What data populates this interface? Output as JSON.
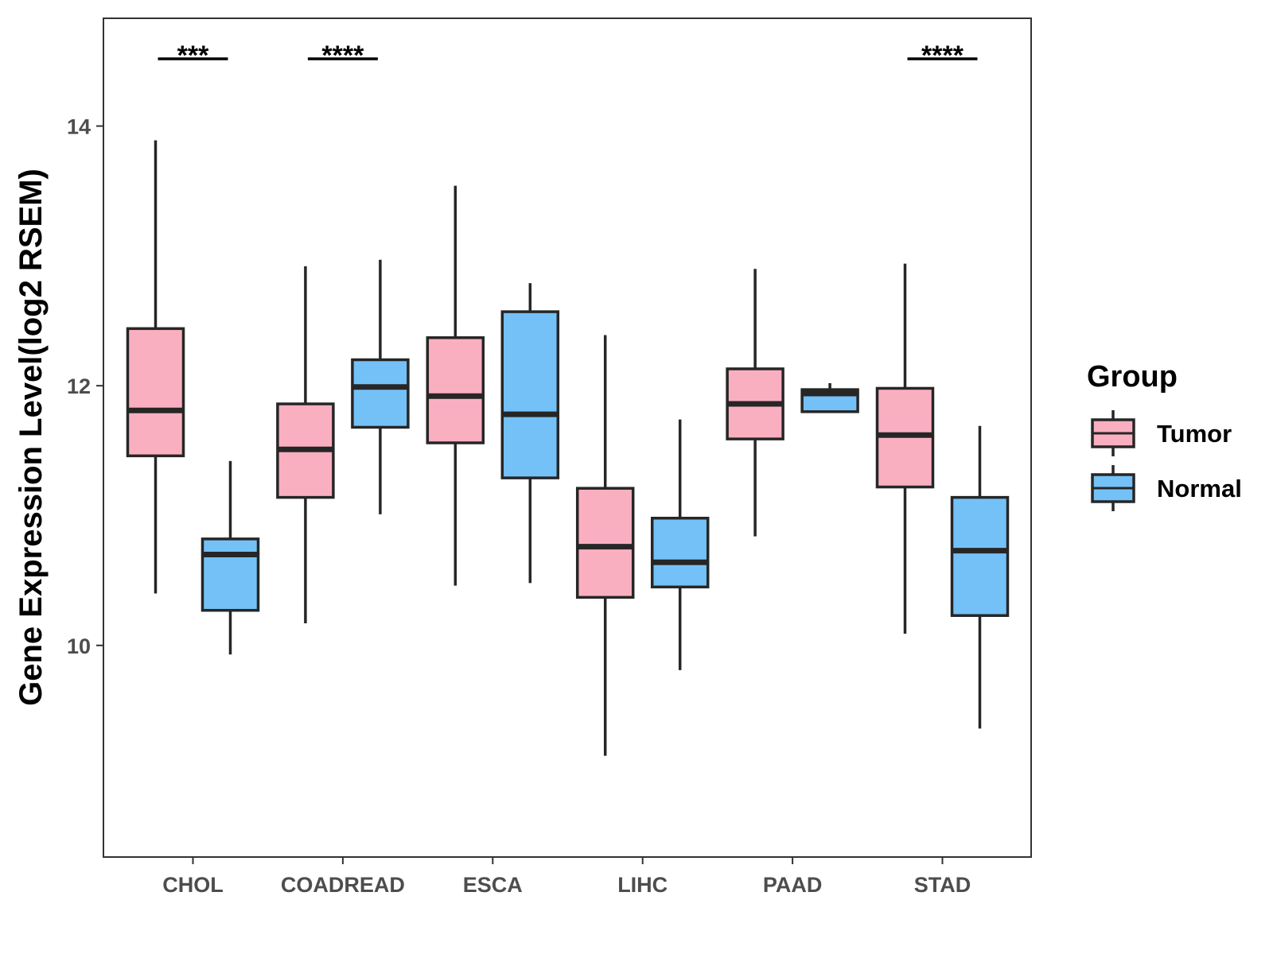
{
  "chart_data": {
    "type": "boxplot",
    "ylabel": "Gene Expression Level(log2 RSEM)",
    "xlabel": "",
    "ylim": [
      8.37,
      14.83
    ],
    "yticks": [
      10,
      12,
      14
    ],
    "grid": false,
    "legend": {
      "title": "Group",
      "position": "right",
      "entries": [
        {
          "name": "Tumor",
          "color": "#FAAFC1"
        },
        {
          "name": "Normal",
          "color": "#74C1F8"
        }
      ]
    },
    "categories": [
      "CHOL",
      "COADREAD",
      "ESCA",
      "LIHC",
      "PAAD",
      "STAD"
    ],
    "series": [
      {
        "name": "Tumor",
        "color": "#FAAFC1",
        "boxes": [
          {
            "min": 10.4,
            "q1": 11.46,
            "median": 11.81,
            "q3": 12.44,
            "max": 13.89
          },
          {
            "min": 10.17,
            "q1": 11.14,
            "median": 11.51,
            "q3": 11.86,
            "max": 12.92
          },
          {
            "min": 10.46,
            "q1": 11.56,
            "median": 11.92,
            "q3": 12.37,
            "max": 13.54
          },
          {
            "min": 9.15,
            "q1": 10.37,
            "median": 10.76,
            "q3": 11.21,
            "max": 12.39
          },
          {
            "min": 10.84,
            "q1": 11.59,
            "median": 11.86,
            "q3": 12.13,
            "max": 12.9
          },
          {
            "min": 10.09,
            "q1": 11.22,
            "median": 11.62,
            "q3": 11.98,
            "max": 12.94
          }
        ]
      },
      {
        "name": "Normal",
        "color": "#74C1F8",
        "boxes": [
          {
            "min": 9.93,
            "q1": 10.27,
            "median": 10.7,
            "q3": 10.82,
            "max": 11.42
          },
          {
            "min": 11.01,
            "q1": 11.68,
            "median": 11.99,
            "q3": 12.2,
            "max": 12.97
          },
          {
            "min": 10.48,
            "q1": 11.29,
            "median": 11.78,
            "q3": 12.57,
            "max": 12.79
          },
          {
            "min": 9.81,
            "q1": 10.45,
            "median": 10.64,
            "q3": 10.98,
            "max": 11.74
          },
          {
            "min": 11.8,
            "q1": 11.8,
            "median": 11.94,
            "q3": 11.97,
            "max": 12.02
          },
          {
            "min": 9.36,
            "q1": 10.23,
            "median": 10.73,
            "q3": 11.14,
            "max": 11.69
          }
        ]
      }
    ],
    "annotations": [
      {
        "category": "CHOL",
        "label": "***"
      },
      {
        "category": "COADREAD",
        "label": "****"
      },
      {
        "category": "STAD",
        "label": "****"
      }
    ]
  },
  "colors": {
    "tumor": "#FAAFC1",
    "normal": "#74C1F8",
    "outline": "#262626",
    "panel_border": "#333333",
    "tick_text": "#4d4d4d"
  }
}
